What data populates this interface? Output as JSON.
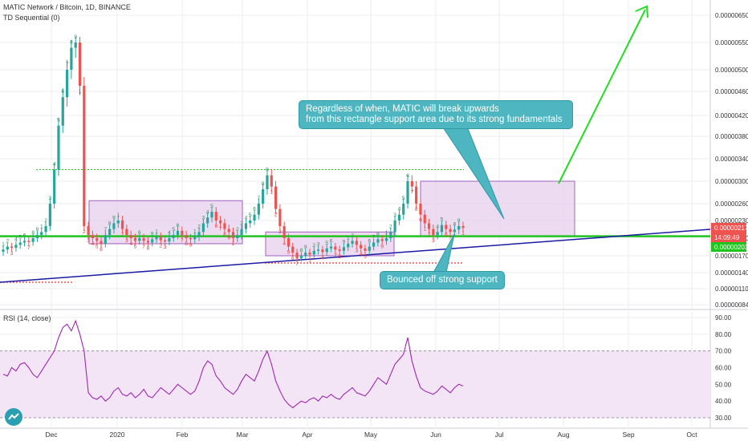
{
  "header": {
    "symbol": "MATIC Network / Bitcoin, 1D, BINANCE",
    "indicator": "TD Sequential (0)"
  },
  "rsi_panel": {
    "label": "RSI (14, close)"
  },
  "annotations": {
    "callout_top": [
      "Regardless of when, MATIC will break upwards",
      "from this rectangle support area due to its strong fundamentals"
    ],
    "callout_bottom": "Bounced off strong support"
  },
  "price_tags": {
    "last_price": "0.00000217",
    "countdown": "14:09:49",
    "support_level": "0.00000203"
  },
  "colors": {
    "background": "#ffffff",
    "grid": "#e9edf2",
    "up": "#26a69a",
    "down": "#ef5350",
    "support_line": "#1fc41f",
    "trendline": "#1a1aa6",
    "rectangle_fill": "#e7cfee",
    "rectangle_border": "#a060c0",
    "callout": "#4db6c1",
    "rsi_line": "#9c27b0",
    "rsi_band": "#f3e5f5",
    "arrow": "#22dd22",
    "td_up": "#2e8b57",
    "td_down": "#e53935"
  },
  "chart_data": [
    {
      "type": "candlestick",
      "title": "MATIC Network / Bitcoin, 1D, BINANCE",
      "y_scale": "log",
      "ylim": [
        8.4e-07,
        7e-07
      ],
      "y_ticks": [
        "0.00000650",
        "0.00000550",
        "0.00000500",
        "0.00000460",
        "0.00000420",
        "0.00000380",
        "0.00000340",
        "0.00000300",
        "0.00000260",
        "0.00000230",
        "0.00000200",
        "0.00000170",
        "0.00000140",
        "0.00000110",
        "0.00000084"
      ],
      "x_ticks": [
        "Dec",
        "2020",
        "Feb",
        "Mar",
        "Apr",
        "May",
        "Jun",
        "Jul",
        "Aug",
        "Sep",
        "Oct"
      ],
      "series": [
        {
          "values": [
            1.8e-06,
            1.85e-06,
            1.83e-06,
            1.88e-06,
            1.92e-06,
            1.95e-06,
            1.93e-06,
            2e-06,
            2.05e-06,
            2.1e-06,
            2.2e-06,
            2.6e-06,
            3.2e-06,
            4e-06,
            4.5e-06,
            5e-06,
            5.4e-06,
            5.5e-06,
            4.7e-06,
            2.2e-06,
            2.05e-06,
            2e-06,
            1.95e-06,
            1.9e-06,
            2.05e-06,
            2.15e-06,
            2.25e-06,
            2.3e-06,
            2.15e-06,
            2.05e-06,
            2e-06,
            1.95e-06,
            2e-06,
            1.95e-06,
            1.92e-06,
            1.98e-06,
            2.02e-06,
            1.96e-06,
            1.94e-06,
            2e-06,
            2.05e-06,
            2.12e-06,
            2.05e-06,
            2e-06,
            1.98e-06,
            2.02e-06,
            2.1e-06,
            2.25e-06,
            2.35e-06,
            2.45e-06,
            2.3e-06,
            2.25e-06,
            2.15e-06,
            2.1e-06,
            2e-06,
            2.05e-06,
            2.15e-06,
            2.25e-06,
            2.3e-06,
            2.4e-06,
            2.6e-06,
            2.85e-06,
            3.1e-06,
            2.9e-06,
            2.5e-06,
            2.2e-06,
            2e-06,
            1.85e-06,
            1.75e-06,
            1.65e-06,
            1.7e-06,
            1.75e-06,
            1.72e-06,
            1.78e-06,
            1.8e-06,
            1.76e-06,
            1.82e-06,
            1.85e-06,
            1.8e-06,
            1.78e-06,
            1.84e-06,
            1.9e-06,
            1.95e-06,
            1.88e-06,
            1.82e-06,
            1.78e-06,
            1.85e-06,
            1.92e-06,
            1.98e-06,
            1.95e-06,
            2e-06,
            2.1e-06,
            2.3e-06,
            2.4e-06,
            2.6e-06,
            3e-06,
            2.9e-06,
            2.6e-06,
            2.4e-06,
            2.25e-06,
            2.15e-06,
            2.05e-06,
            2.1e-06,
            2.22e-06,
            2.15e-06,
            2.1e-06,
            2.14e-06,
            2.2e-06,
            2.17e-06
          ]
        }
      ],
      "support_level": 2.03e-06,
      "resistance_level": 3.2e-06,
      "rectangles": [
        {
          "from": "Jan",
          "y_range": [
            1.9e-06,
            2.65e-06
          ]
        },
        {
          "from": "Mar",
          "y_range": [
            1.7e-06,
            2.1e-06
          ]
        },
        {
          "from": "May",
          "y_range": [
            2.03e-06,
            3e-06
          ]
        }
      ]
    },
    {
      "type": "line",
      "title": "RSI (14, close)",
      "ylim": [
        30,
        90
      ],
      "y_ticks": [
        "90.00",
        "80.00",
        "70.00",
        "60.00",
        "50.00",
        "40.00",
        "30.00"
      ],
      "band": [
        30,
        70
      ],
      "series": [
        {
          "values": [
            56,
            55,
            60,
            58,
            62,
            63,
            60,
            56,
            54,
            58,
            62,
            66,
            70,
            78,
            84,
            86,
            82,
            88,
            80,
            70,
            45,
            42,
            41,
            43,
            40,
            42,
            46,
            48,
            44,
            43,
            45,
            42,
            44,
            47,
            43,
            42,
            45,
            48,
            46,
            44,
            47,
            50,
            48,
            46,
            44,
            46,
            52,
            60,
            64,
            62,
            55,
            52,
            48,
            46,
            44,
            47,
            52,
            56,
            54,
            52,
            58,
            65,
            70,
            62,
            52,
            46,
            41,
            38,
            36,
            38,
            40,
            39,
            41,
            42,
            40,
            43,
            42,
            44,
            42,
            41,
            44,
            46,
            48,
            45,
            44,
            43,
            46,
            50,
            54,
            52,
            50,
            56,
            62,
            65,
            68,
            78,
            64,
            55,
            48,
            46,
            45,
            44,
            46,
            49,
            47,
            45,
            48,
            50,
            49
          ]
        }
      ]
    }
  ]
}
